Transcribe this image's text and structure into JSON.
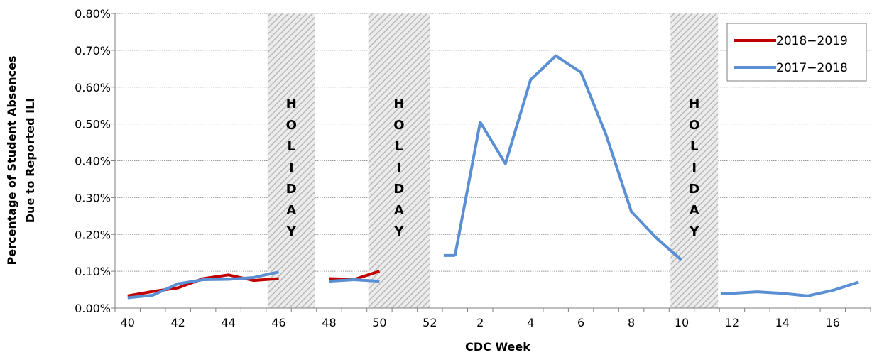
{
  "chart_data": {
    "type": "line",
    "title": "",
    "xlabel": "CDC Week",
    "ylabel_line1": "Percentage of Student Absences",
    "ylabel_line2": "Due to Reported ILI",
    "ylim": [
      0,
      0.8
    ],
    "y_ticks": [
      "0.00%",
      "0.10%",
      "0.20%",
      "0.30%",
      "0.40%",
      "0.50%",
      "0.60%",
      "0.70%",
      "0.80%"
    ],
    "y_tick_values": [
      0,
      0.1,
      0.2,
      0.3,
      0.4,
      0.5,
      0.6,
      0.7,
      0.8
    ],
    "weeks": [
      "40",
      "41",
      "42",
      "43",
      "44",
      "45",
      "46",
      "47",
      "48",
      "49",
      "50",
      "51",
      "52",
      "1",
      "2",
      "3",
      "4",
      "5",
      "6",
      "7",
      "8",
      "9",
      "10",
      "11",
      "12",
      "13",
      "14",
      "15",
      "16",
      "17"
    ],
    "x_tick_labels": [
      "40",
      "",
      "42",
      "",
      "44",
      "",
      "46",
      "",
      "48",
      "",
      "50",
      "",
      "52",
      "",
      "2",
      "",
      "4",
      "",
      "6",
      "",
      "8",
      "",
      "10",
      "",
      "12",
      "",
      "14",
      "",
      "16",
      ""
    ],
    "holidays": [
      {
        "from": 46,
        "to": 47,
        "label": "HOLIDAY"
      },
      {
        "from": 50,
        "to": 52,
        "label": "HOLIDAY"
      },
      {
        "from": 10,
        "to": 11,
        "label": "HOLIDAY"
      }
    ],
    "grid": true,
    "legend_position": "top-right",
    "series": [
      {
        "name": "2018−2019",
        "color": "#C00000",
        "values": [
          0.033,
          0.045,
          0.055,
          0.08,
          0.09,
          0.075,
          0.08,
          null,
          0.08,
          0.078,
          0.1,
          null,
          null,
          null,
          null,
          null,
          null,
          null,
          null,
          null,
          null,
          null,
          null,
          null,
          null,
          null,
          null,
          null,
          null,
          null
        ]
      },
      {
        "name": "2017−2018",
        "color": "#5B8FD4",
        "values": [
          0.028,
          0.035,
          0.066,
          0.077,
          0.078,
          0.083,
          0.098,
          null,
          0.073,
          0.077,
          0.073,
          null,
          null,
          0.143,
          0.505,
          0.392,
          0.62,
          0.685,
          0.64,
          0.47,
          0.262,
          0.19,
          0.13,
          null,
          0.04,
          0.044,
          0.04,
          0.033,
          0.048,
          0.07
        ]
      }
    ]
  }
}
